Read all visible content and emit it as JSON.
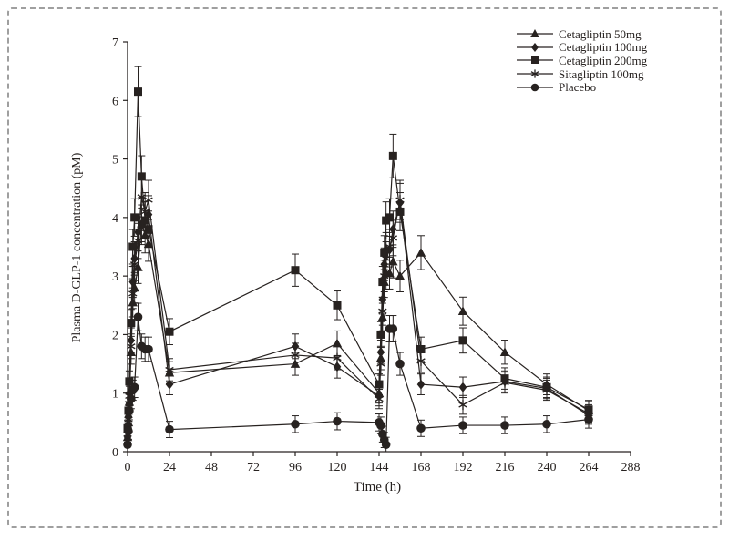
{
  "figure": {
    "border_color": "#9f9f9f",
    "ink_color": "#272220",
    "background": "#ffffff"
  },
  "chart_data": {
    "type": "line",
    "title": "",
    "xlabel": "Time (h)",
    "ylabel": "Plasma D-GLP-1 concentration (pM)",
    "xlim": [
      0,
      288
    ],
    "ylim": [
      0,
      7
    ],
    "x_ticks": [
      0,
      24,
      48,
      72,
      96,
      120,
      144,
      168,
      192,
      216,
      240,
      264,
      288
    ],
    "y_ticks": [
      0,
      1,
      2,
      3,
      4,
      5,
      6,
      7
    ],
    "grid": false,
    "legend_position": "top-right-inside",
    "x": [
      0,
      0.5,
      1,
      2,
      3,
      4,
      6,
      8,
      10,
      12,
      24,
      96,
      120,
      144,
      145,
      146,
      147,
      148,
      150,
      152,
      156,
      168,
      192,
      216,
      240,
      264
    ],
    "series": [
      {
        "name": "Cetagliptin 50mg",
        "marker": "triangle",
        "values": [
          0.25,
          0.5,
          0.85,
          1.7,
          2.55,
          2.8,
          3.15,
          3.9,
          3.7,
          3.55,
          1.35,
          1.5,
          1.85,
          1.0,
          1.6,
          2.3,
          2.9,
          3.05,
          3.05,
          3.25,
          3.0,
          3.4,
          2.4,
          1.7,
          1.15,
          0.7
        ]
      },
      {
        "name": "Cetagliptin 100mg",
        "marker": "diamond",
        "values": [
          0.35,
          0.6,
          1.0,
          1.9,
          2.9,
          3.3,
          3.75,
          3.85,
          3.95,
          4.05,
          1.15,
          1.8,
          1.45,
          0.95,
          1.7,
          2.6,
          3.2,
          3.45,
          3.45,
          3.8,
          4.25,
          1.15,
          1.1,
          1.2,
          1.08,
          0.62
        ]
      },
      {
        "name": "Cetagliptin 200mg",
        "marker": "square",
        "values": [
          0.4,
          0.7,
          1.2,
          2.2,
          3.5,
          4.0,
          6.15,
          4.7,
          3.95,
          3.8,
          2.05,
          3.1,
          2.5,
          1.15,
          2.0,
          2.9,
          3.4,
          3.95,
          4.0,
          5.05,
          4.1,
          1.75,
          1.9,
          1.25,
          1.1,
          0.72
        ]
      },
      {
        "name": "Sitagliptin 100mg",
        "marker": "asterisk",
        "values": [
          0.3,
          0.55,
          0.95,
          1.8,
          2.7,
          3.2,
          3.6,
          4.35,
          4.1,
          4.3,
          1.4,
          1.65,
          1.6,
          0.9,
          1.5,
          2.4,
          3.0,
          3.3,
          3.5,
          3.65,
          4.3,
          1.55,
          0.8,
          1.18,
          1.05,
          0.65
        ]
      },
      {
        "name": "Placebo",
        "marker": "circle",
        "values": [
          0.12,
          0.35,
          0.7,
          0.9,
          1.05,
          1.1,
          2.3,
          1.8,
          1.75,
          1.75,
          0.38,
          0.47,
          0.52,
          0.5,
          0.45,
          0.3,
          0.2,
          0.12,
          2.1,
          2.1,
          1.5,
          0.4,
          0.45,
          0.45,
          0.47,
          0.55
        ]
      }
    ],
    "error_bars": {
      "base": 0.12,
      "slope": 0.05,
      "cap_width": 8
    }
  }
}
